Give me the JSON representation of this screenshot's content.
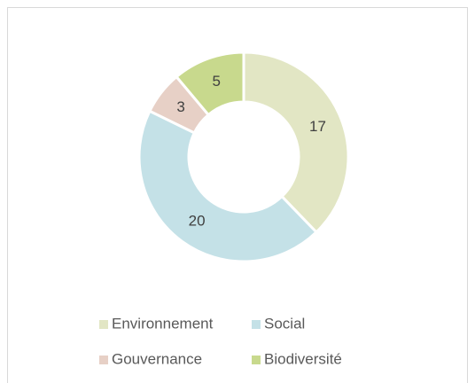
{
  "chart_data": {
    "type": "donut",
    "categories": [
      "Environnement",
      "Social",
      "Gouvernance",
      "Biodiversité"
    ],
    "values": [
      17,
      20,
      3,
      5
    ],
    "colors": [
      "#e2e6c4",
      "#c4e1e7",
      "#e7d0c6",
      "#c8d98d"
    ],
    "legend": "bottom"
  }
}
